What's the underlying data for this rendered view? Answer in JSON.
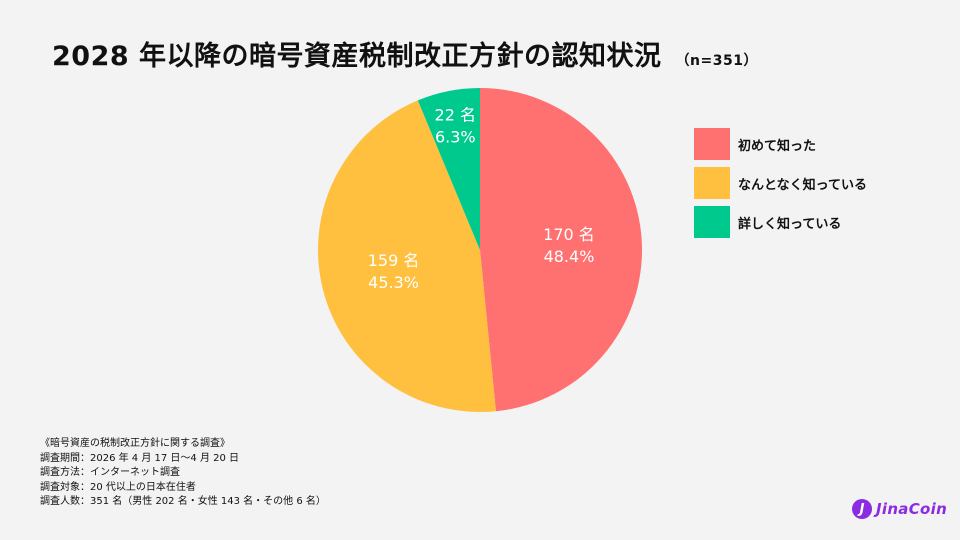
{
  "title": "2028 年以降の暗号資産税制改正方針の認知状況",
  "sample": "（n=351）",
  "chart_data": {
    "type": "pie",
    "slices": [
      {
        "label": "初めて知った",
        "count": 170,
        "count_label": "170 名",
        "percent": 48.4,
        "percent_label": "48.4%",
        "color": "#ff7070"
      },
      {
        "label": "なんとなく知っている",
        "count": 159,
        "count_label": "159 名",
        "percent": 45.3,
        "percent_label": "45.3%",
        "color": "#ffc040"
      },
      {
        "label": "詳しく知っている",
        "count": 22,
        "count_label": "22 名",
        "percent": 6.3,
        "percent_label": "6.3%",
        "color": "#00c98e"
      }
    ],
    "legend_position": "right"
  },
  "notes": [
    "《暗号資産の税制改正方針に関する調査》",
    "調査期間：2026 年 4 月 17 日～4 月 20 日",
    "調査方法：インターネット調査",
    "調査対象：20 代以上の日本在住者",
    "調査人数：351 名（男性 202 名・女性 143 名・その他 6 名）"
  ],
  "logo": {
    "mark": "J",
    "text": "JinaCoin"
  }
}
